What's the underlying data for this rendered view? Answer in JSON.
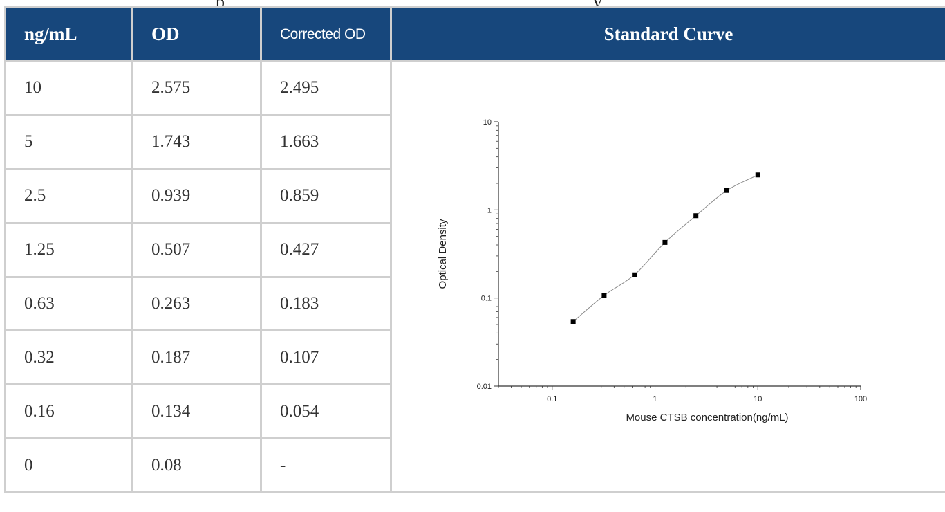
{
  "table": {
    "headers": [
      "ng/mL",
      "OD",
      "Corrected OD",
      "Standard Curve"
    ],
    "rows": [
      [
        "10",
        "2.575",
        "2.495"
      ],
      [
        "5",
        "1.743",
        "1.663"
      ],
      [
        "2.5",
        "0.939",
        "0.859"
      ],
      [
        "1.25",
        "0.507",
        "0.427"
      ],
      [
        "0.63",
        "0.263",
        "0.183"
      ],
      [
        "0.32",
        "0.187",
        "0.107"
      ],
      [
        "0.16",
        "0.134",
        "0.054"
      ],
      [
        "0",
        "0.08",
        "-"
      ]
    ]
  },
  "colors": {
    "header_bg": "#17477c",
    "header_text": "#ffffff",
    "border": "#cfcfcf"
  },
  "chart_data": {
    "type": "scatter",
    "title": "",
    "xlabel": "Mouse CTSB concentration(ng/mL)",
    "ylabel": "Optical Density",
    "x_scale": "log",
    "y_scale": "log",
    "xlim": [
      0.03,
      100
    ],
    "ylim": [
      0.01,
      10
    ],
    "x_tick_labels": [
      "0.1",
      "1",
      "10",
      "100"
    ],
    "y_tick_labels": [
      "0.01",
      "0.1",
      "1",
      "10"
    ],
    "x": [
      0.16,
      0.32,
      0.63,
      1.25,
      2.5,
      5,
      10
    ],
    "y": [
      0.054,
      0.107,
      0.183,
      0.427,
      0.859,
      1.663,
      2.495
    ],
    "fit_curve": true,
    "grid": false
  }
}
